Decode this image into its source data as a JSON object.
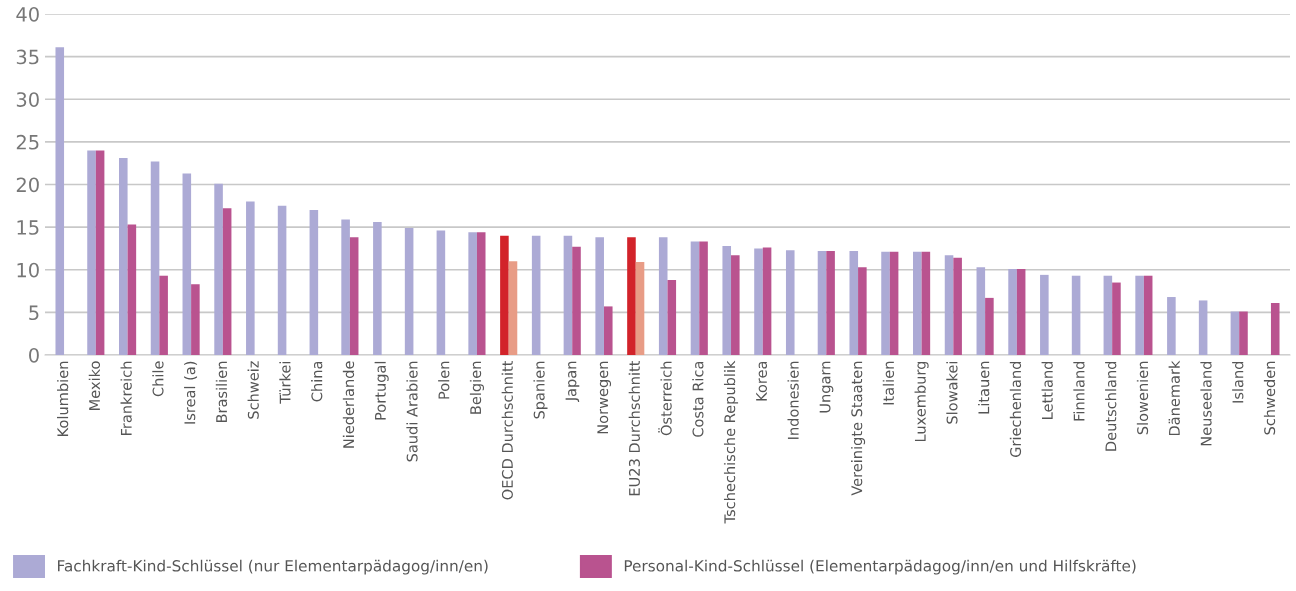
{
  "chart_data": {
    "type": "bar",
    "categories": [
      "Kolumbien",
      "Mexiko",
      "Frankreich",
      "Chile",
      "Isreal (a)",
      "Brasilien",
      "Schweiz",
      "Türkei",
      "China",
      "Niederlande",
      "Portugal",
      "Saudi Arabien",
      "Polen",
      "Belgien",
      "OECD Durchschnitt",
      "Spanien",
      "Japan",
      "Norwegen",
      "EU23 Durchschnitt",
      "Österreich",
      "Costa Rica",
      "Tschechische Republik",
      "Korea",
      "Indonesien",
      "Ungarn",
      "Vereinigte Staaten",
      "Italien",
      "Luxemburg",
      "Slowakei",
      "Litauen",
      "Griechenland",
      "Lettland",
      "Finnland",
      "Deutschland",
      "Slowenien",
      "Dänemark",
      "Neuseeland",
      "Island",
      "Schweden"
    ],
    "series": [
      {
        "name": "Fachkraft-Kind-Schlüssel (nur Elementarpädagog/inn/en)",
        "color": "#acaad5",
        "colors": [
          "#acaad5",
          "#acaad5",
          "#acaad5",
          "#acaad5",
          "#acaad5",
          "#acaad5",
          "#acaad5",
          "#acaad5",
          "#acaad5",
          "#acaad5",
          "#acaad5",
          "#acaad5",
          "#acaad5",
          "#acaad5",
          "#d2232a",
          "#acaad5",
          "#acaad5",
          "#acaad5",
          "#d2232a",
          "#acaad5",
          "#acaad5",
          "#acaad5",
          "#acaad5",
          "#acaad5",
          "#acaad5",
          "#acaad5",
          "#acaad5",
          "#acaad5",
          "#acaad5",
          "#acaad5",
          "#acaad5",
          "#acaad5",
          "#acaad5",
          "#acaad5",
          "#acaad5",
          "#acaad5",
          "#acaad5",
          "#acaad5",
          "#acaad5"
        ],
        "values": [
          36.1,
          24.0,
          23.1,
          22.7,
          21.3,
          20.1,
          18.0,
          17.5,
          17.0,
          15.9,
          15.6,
          14.9,
          14.6,
          14.4,
          14.0,
          14.0,
          14.0,
          13.8,
          13.8,
          13.8,
          13.3,
          12.8,
          12.5,
          12.3,
          12.2,
          12.2,
          12.1,
          12.1,
          11.7,
          10.3,
          10.1,
          9.4,
          9.3,
          9.3,
          9.3,
          6.8,
          6.4,
          5.1,
          null
        ]
      },
      {
        "name": "Personal-Kind-Schlüssel (Elementarpädagog/inn/en und Hilfskräfte)",
        "color": "#b9538f",
        "colors": [
          "#b9538f",
          "#b9538f",
          "#b9538f",
          "#b9538f",
          "#b9538f",
          "#b9538f",
          "#b9538f",
          "#b9538f",
          "#b9538f",
          "#b9538f",
          "#b9538f",
          "#b9538f",
          "#b9538f",
          "#b9538f",
          "#e89c86",
          "#b9538f",
          "#b9538f",
          "#b9538f",
          "#e89c86",
          "#b9538f",
          "#b9538f",
          "#b9538f",
          "#b9538f",
          "#b9538f",
          "#b9538f",
          "#b9538f",
          "#b9538f",
          "#b9538f",
          "#b9538f",
          "#b9538f",
          "#b9538f",
          "#b9538f",
          "#b9538f",
          "#b9538f",
          "#b9538f",
          "#b9538f",
          "#b9538f",
          "#b9538f",
          "#b9538f"
        ],
        "values": [
          null,
          24.0,
          15.3,
          9.3,
          8.3,
          17.2,
          null,
          null,
          null,
          13.8,
          null,
          null,
          null,
          14.4,
          11.0,
          null,
          12.7,
          5.7,
          10.9,
          8.8,
          13.3,
          11.7,
          12.6,
          null,
          12.2,
          10.3,
          12.1,
          12.1,
          11.4,
          6.7,
          10.1,
          null,
          null,
          8.5,
          9.3,
          null,
          null,
          5.1,
          6.1
        ]
      }
    ],
    "ylim": [
      0,
      40
    ],
    "yticks": [
      0,
      5,
      10,
      15,
      20,
      25,
      30,
      35,
      40
    ],
    "grid": "y",
    "legend": "bottom"
  }
}
